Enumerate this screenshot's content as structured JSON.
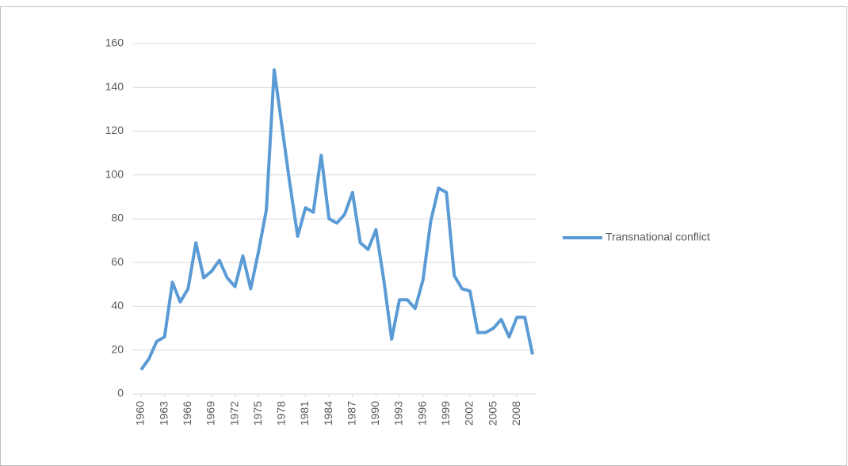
{
  "chart_data": {
    "type": "line",
    "x": [
      1960,
      1961,
      1962,
      1963,
      1964,
      1965,
      1966,
      1967,
      1968,
      1969,
      1970,
      1971,
      1972,
      1973,
      1974,
      1975,
      1976,
      1977,
      1978,
      1979,
      1980,
      1981,
      1982,
      1983,
      1984,
      1985,
      1986,
      1987,
      1988,
      1989,
      1990,
      1991,
      1992,
      1993,
      1994,
      1995,
      1996,
      1997,
      1998,
      1999,
      2000,
      2001,
      2002,
      2003,
      2004,
      2005,
      2006,
      2007,
      2008,
      2009,
      2010
    ],
    "series": [
      {
        "name": "Transnational conflict",
        "color": "#5b9bd5",
        "values": [
          11,
          16,
          24,
          26,
          51,
          42,
          48,
          69,
          53,
          56,
          61,
          53,
          49,
          63,
          48,
          65,
          84,
          148,
          122,
          96,
          72,
          85,
          83,
          109,
          80,
          78,
          82,
          92,
          69,
          66,
          75,
          52,
          25,
          43,
          43,
          39,
          52,
          79,
          94,
          92,
          54,
          48,
          47,
          28,
          28,
          30,
          34,
          26,
          35,
          35,
          18
        ]
      }
    ],
    "xlim": [
      1960,
      2010
    ],
    "xticks": [
      1960,
      1963,
      1966,
      1969,
      1972,
      1975,
      1978,
      1981,
      1984,
      1987,
      1990,
      1993,
      1996,
      1999,
      2002,
      2005,
      2008
    ],
    "ylim": [
      0,
      160
    ],
    "yticks": [
      0,
      20,
      40,
      60,
      80,
      100,
      120,
      140,
      160
    ],
    "grid": true,
    "legend": "right"
  }
}
